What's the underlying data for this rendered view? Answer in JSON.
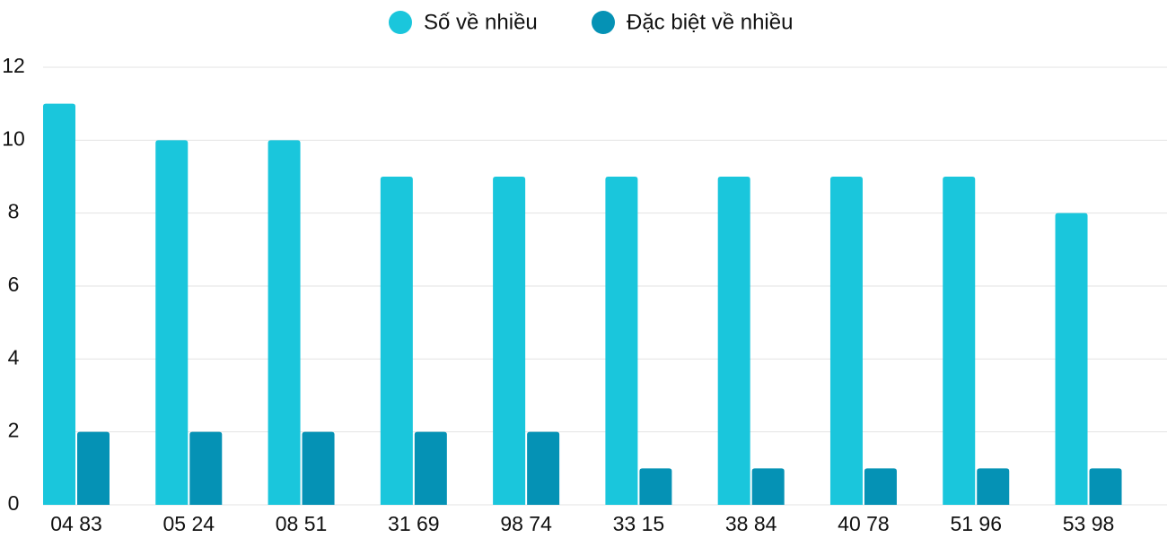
{
  "chart_data": {
    "type": "bar",
    "categories": [
      "04 83",
      "05 24",
      "08 51",
      "31 69",
      "98 74",
      "33 15",
      "38 84",
      "40 78",
      "51 96",
      "53 98"
    ],
    "series": [
      {
        "name": "Số về nhiều",
        "color": "#1ac6dc",
        "values": [
          11,
          10,
          10,
          9,
          9,
          9,
          9,
          9,
          9,
          8
        ]
      },
      {
        "name": "Đặc biệt về nhiều",
        "color": "#0592b5",
        "values": [
          2,
          2,
          2,
          2,
          2,
          1,
          1,
          1,
          1,
          1
        ]
      }
    ],
    "ylim": [
      0,
      12
    ],
    "yticks": [
      0,
      2,
      4,
      6,
      8,
      10,
      12
    ],
    "grid": true,
    "legend": "top"
  }
}
